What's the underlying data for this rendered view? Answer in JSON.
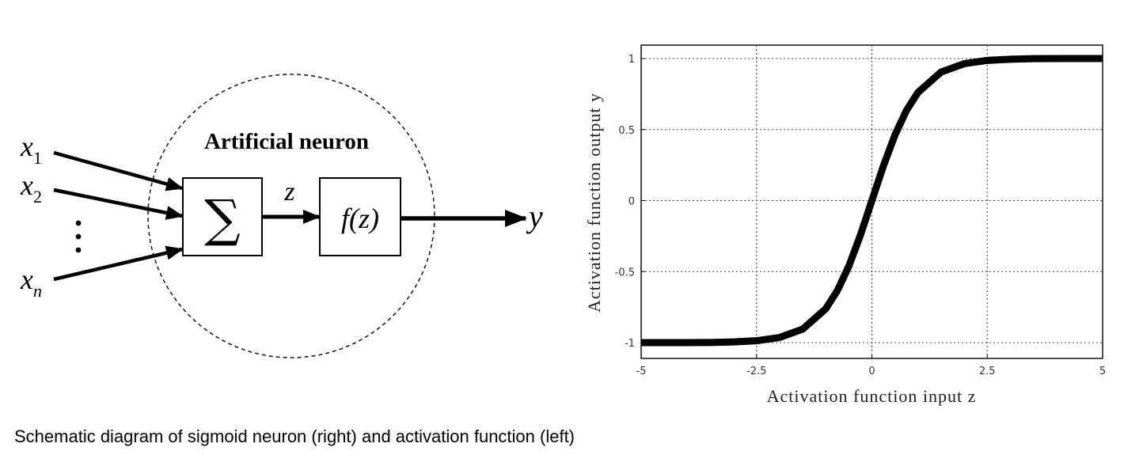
{
  "neuron": {
    "title": "Artificial neuron",
    "inputs": [
      {
        "base": "x",
        "sub": "1"
      },
      {
        "base": "x",
        "sub": "2"
      },
      {
        "base": "x",
        "sub": "n"
      }
    ],
    "ellipsis": "⋮",
    "sum_symbol": "∑",
    "z_label": "z",
    "activation_label": "f(z)",
    "output_label": "y"
  },
  "chart_data": {
    "type": "line",
    "xlabel": "Activation function input z",
    "ylabel": "Activation function output y",
    "xlim": [
      -5,
      5
    ],
    "ylim": [
      -1.1,
      1.1
    ],
    "xticks": [
      -5,
      -2.5,
      0,
      2.5,
      5
    ],
    "xtick_labels": [
      "-5",
      "-2.5",
      "0",
      "2.5",
      "5"
    ],
    "yticks": [
      -1,
      -0.5,
      0,
      0.5,
      1
    ],
    "ytick_labels": [
      "-1",
      "-0.5",
      "0",
      "0.5",
      "1"
    ],
    "grid": true,
    "series": [
      {
        "x": [
          -5,
          -4.5,
          -4,
          -3.5,
          -3,
          -2.5,
          -2,
          -1.5,
          -1,
          -0.75,
          -0.5,
          -0.25,
          0,
          0.25,
          0.5,
          0.75,
          1,
          1.5,
          2,
          2.5,
          3,
          3.5,
          4,
          4.5,
          5
        ],
        "y": [
          -1.0,
          -1.0,
          -1.0,
          -0.999,
          -0.995,
          -0.987,
          -0.964,
          -0.905,
          -0.762,
          -0.635,
          -0.462,
          -0.245,
          0.0,
          0.245,
          0.462,
          0.635,
          0.762,
          0.905,
          0.964,
          0.987,
          0.995,
          0.999,
          1.0,
          1.0,
          1.0
        ],
        "color": "#000000"
      }
    ]
  },
  "caption": "Schematic diagram of sigmoid neuron (right) and activation function (left)"
}
